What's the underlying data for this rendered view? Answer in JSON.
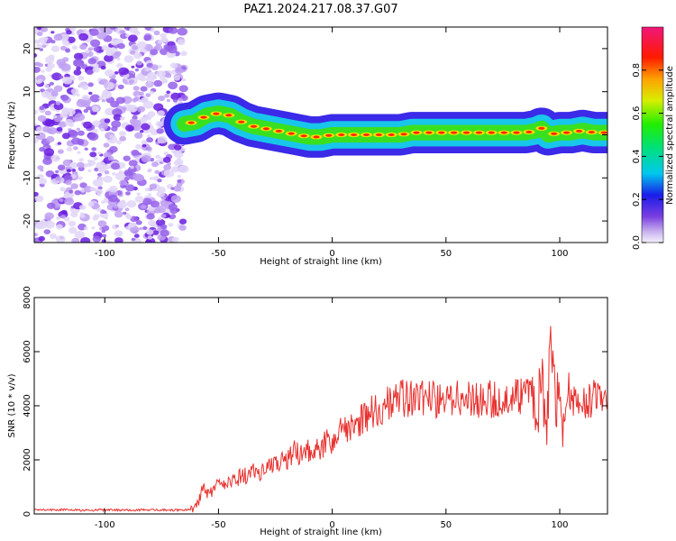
{
  "figure": {
    "title": "PAZ1.2024.217.08.37.G07"
  },
  "chart_data": [
    {
      "type": "heatmap",
      "xlabel": "Height of straight line (km)",
      "ylabel": "Frequency (Hz)",
      "xlim": [
        -131,
        121
      ],
      "ylim": [
        -25,
        25
      ],
      "xticks": [
        -100,
        -50,
        0,
        50,
        100
      ],
      "yticks": [
        -20,
        -10,
        0,
        10,
        20
      ],
      "colorbar": {
        "label": "Normalized spectral amplitude",
        "range": [
          0.0,
          1.0
        ],
        "ticks": [
          0.0,
          0.2,
          0.4,
          0.6,
          0.8
        ],
        "colormap": "rainbow (purple-blue-cyan-green-yellow-red-pink)"
      },
      "noise_region_x": [
        -131,
        -65
      ],
      "ridge": {
        "x": [
          -65,
          -60,
          -55,
          -50,
          -45,
          -40,
          -35,
          -30,
          -25,
          -20,
          -15,
          -10,
          -5,
          0,
          5,
          10,
          15,
          20,
          25,
          30,
          35,
          40,
          45,
          50,
          55,
          60,
          65,
          70,
          75,
          80,
          85,
          90,
          92,
          95,
          100,
          105,
          110,
          115,
          121
        ],
        "frequency": [
          2.5,
          3.0,
          4.5,
          5.0,
          4.5,
          3.0,
          2.0,
          1.5,
          1.0,
          0.5,
          0.0,
          -0.5,
          -0.5,
          0.0,
          0.0,
          0.0,
          0.0,
          0.0,
          0.0,
          0.0,
          0.5,
          0.5,
          0.5,
          0.5,
          0.5,
          0.5,
          0.5,
          0.5,
          0.5,
          0.5,
          0.5,
          1.0,
          1.5,
          0.0,
          0.5,
          0.5,
          1.0,
          0.5,
          0.5
        ]
      }
    },
    {
      "type": "line",
      "xlabel": "Height of straight line (km)",
      "ylabel": "SNR (10 * v/v)",
      "xlim": [
        -131,
        121
      ],
      "ylim": [
        0,
        8000
      ],
      "xticks": [
        -100,
        -50,
        0,
        50,
        100
      ],
      "yticks": [
        0,
        2000,
        4000,
        6000,
        8000
      ],
      "color": "#e8312e",
      "x": [
        -131,
        -120,
        -110,
        -100,
        -90,
        -80,
        -70,
        -62,
        -59,
        -57,
        -55,
        -52,
        -50,
        -47,
        -45,
        -42,
        -40,
        -37,
        -35,
        -32,
        -30,
        -27,
        -25,
        -22,
        -20,
        -17,
        -15,
        -12,
        -10,
        -7,
        -5,
        -2,
        0,
        3,
        5,
        8,
        10,
        13,
        15,
        18,
        20,
        23,
        25,
        28,
        30,
        35,
        40,
        45,
        50,
        55,
        60,
        65,
        70,
        75,
        80,
        85,
        88,
        90,
        92,
        94,
        96,
        98,
        100,
        102,
        104,
        106,
        108,
        110,
        112,
        114,
        116,
        118,
        121
      ],
      "y": [
        150,
        160,
        130,
        150,
        140,
        150,
        140,
        150,
        400,
        1000,
        700,
        900,
        1100,
        1000,
        1300,
        1200,
        1500,
        1400,
        1700,
        1500,
        1800,
        1900,
        1800,
        2100,
        2000,
        2300,
        2200,
        2500,
        2300,
        2500,
        2400,
        2700,
        2600,
        3000,
        3100,
        3300,
        3400,
        3500,
        3600,
        3800,
        3900,
        4000,
        4100,
        4200,
        4300,
        4250,
        4300,
        4250,
        4200,
        4250,
        4250,
        4200,
        4250,
        4250,
        4300,
        4350,
        4500,
        4000,
        5000,
        3500,
        6000,
        4000,
        4800,
        3000,
        4500,
        4200,
        4300,
        4200,
        4100,
        4300,
        4200,
        4300,
        4200
      ]
    }
  ]
}
